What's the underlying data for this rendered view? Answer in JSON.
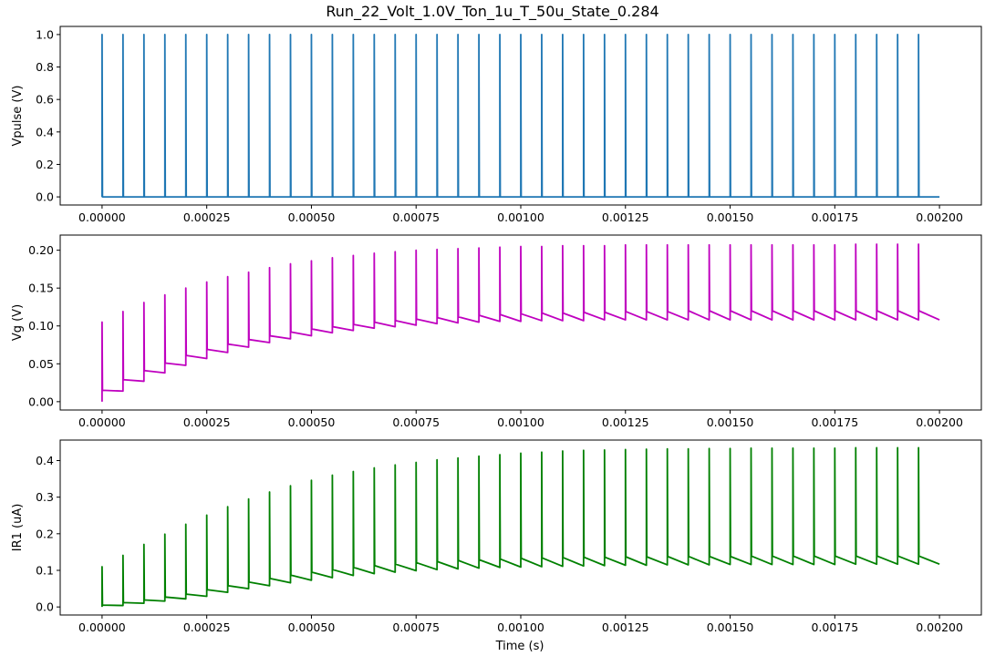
{
  "figure": {
    "title": "Run_22_Volt_1.0V_Ton_1u_T_50u_State_0.284",
    "xlabel": "Time (s)"
  },
  "chart_data": [
    {
      "type": "line",
      "ylabel": "Vpulse (V)",
      "color": "#1f77b4",
      "xlim": [
        -0.0001,
        0.0021
      ],
      "ylim": [
        -0.05,
        1.05
      ],
      "xticks": [
        "0.00000",
        "0.00025",
        "0.00050",
        "0.00075",
        "0.00100",
        "0.00125",
        "0.00150",
        "0.00175",
        "0.00200"
      ],
      "yticks": [
        "0.0",
        "0.2",
        "0.4",
        "0.6",
        "0.8",
        "1.0"
      ],
      "grid": false,
      "pulses": {
        "count": 40,
        "period": 5e-05,
        "t_on": 1e-06,
        "t_start": 0.0,
        "t_end": 0.002,
        "low": 0.0,
        "high": 1.0
      }
    },
    {
      "type": "line",
      "ylabel": "Vg (V)",
      "color": "#bf00bf",
      "xlim": [
        -0.0001,
        0.0021
      ],
      "ylim": [
        -0.011,
        0.22
      ],
      "xticks": [
        "0.00000",
        "0.00025",
        "0.00050",
        "0.00075",
        "0.00100",
        "0.00125",
        "0.00150",
        "0.00175",
        "0.00200"
      ],
      "yticks": [
        "0.00",
        "0.05",
        "0.10",
        "0.15",
        "0.20"
      ],
      "grid": false,
      "pulses": {
        "count": 40,
        "period": 5e-05,
        "t_on": 1e-06,
        "t_start": 0.0,
        "t_end": 0.002,
        "initial": 0.0
      },
      "peaks": [
        0.105,
        0.119,
        0.131,
        0.141,
        0.15,
        0.158,
        0.165,
        0.171,
        0.177,
        0.182,
        0.186,
        0.19,
        0.193,
        0.196,
        0.198,
        0.2,
        0.201,
        0.202,
        0.203,
        0.204,
        0.205,
        0.205,
        0.206,
        0.206,
        0.206,
        0.207,
        0.207,
        0.207,
        0.207,
        0.207,
        0.207,
        0.207,
        0.207,
        0.207,
        0.207,
        0.207,
        0.208,
        0.208,
        0.208,
        0.208
      ],
      "starts": [
        0.015,
        0.029,
        0.041,
        0.051,
        0.061,
        0.069,
        0.076,
        0.082,
        0.087,
        0.092,
        0.096,
        0.099,
        0.102,
        0.105,
        0.107,
        0.109,
        0.111,
        0.112,
        0.114,
        0.115,
        0.116,
        0.117,
        0.117,
        0.118,
        0.118,
        0.119,
        0.119,
        0.119,
        0.12,
        0.12,
        0.12,
        0.12,
        0.12,
        0.12,
        0.12,
        0.12,
        0.12,
        0.12,
        0.12,
        0.12
      ],
      "ends": [
        0.014,
        0.027,
        0.038,
        0.048,
        0.057,
        0.065,
        0.072,
        0.078,
        0.083,
        0.087,
        0.091,
        0.094,
        0.097,
        0.099,
        0.101,
        0.103,
        0.104,
        0.105,
        0.106,
        0.106,
        0.107,
        0.107,
        0.107,
        0.108,
        0.108,
        0.108,
        0.108,
        0.108,
        0.108,
        0.108,
        0.108,
        0.108,
        0.108,
        0.108,
        0.108,
        0.108,
        0.108,
        0.108,
        0.108,
        0.108
      ]
    },
    {
      "type": "line",
      "ylabel": "IR1 (uA)",
      "color": "#008000",
      "xlim": [
        -0.0001,
        0.0021
      ],
      "ylim": [
        -0.022,
        0.456
      ],
      "xticks": [
        "0.00000",
        "0.00025",
        "0.00050",
        "0.00075",
        "0.00100",
        "0.00125",
        "0.00150",
        "0.00175",
        "0.00200"
      ],
      "yticks": [
        "0.0",
        "0.1",
        "0.2",
        "0.3",
        "0.4"
      ],
      "grid": false,
      "pulses": {
        "count": 40,
        "period": 5e-05,
        "t_on": 1e-06,
        "t_start": 0.0,
        "t_end": 0.002,
        "initial": 0.0
      },
      "peaks": [
        0.11,
        0.141,
        0.171,
        0.199,
        0.226,
        0.251,
        0.274,
        0.295,
        0.314,
        0.331,
        0.346,
        0.36,
        0.37,
        0.38,
        0.388,
        0.395,
        0.402,
        0.407,
        0.412,
        0.416,
        0.42,
        0.423,
        0.426,
        0.428,
        0.429,
        0.43,
        0.431,
        0.432,
        0.432,
        0.433,
        0.433,
        0.434,
        0.434,
        0.434,
        0.434,
        0.434,
        0.435,
        0.435,
        0.435,
        0.435
      ],
      "starts": [
        0.005,
        0.012,
        0.019,
        0.027,
        0.035,
        0.047,
        0.058,
        0.068,
        0.078,
        0.087,
        0.095,
        0.102,
        0.108,
        0.113,
        0.117,
        0.121,
        0.124,
        0.127,
        0.129,
        0.131,
        0.133,
        0.134,
        0.135,
        0.136,
        0.136,
        0.137,
        0.137,
        0.138,
        0.138,
        0.138,
        0.138,
        0.139,
        0.139,
        0.139,
        0.139,
        0.139,
        0.139,
        0.139,
        0.139,
        0.139
      ],
      "ends": [
        0.004,
        0.01,
        0.016,
        0.022,
        0.029,
        0.04,
        0.05,
        0.058,
        0.066,
        0.073,
        0.08,
        0.086,
        0.091,
        0.095,
        0.099,
        0.102,
        0.104,
        0.106,
        0.108,
        0.109,
        0.11,
        0.111,
        0.112,
        0.113,
        0.114,
        0.114,
        0.115,
        0.115,
        0.115,
        0.116,
        0.116,
        0.116,
        0.116,
        0.116,
        0.116,
        0.117,
        0.117,
        0.117,
        0.117,
        0.117
      ]
    }
  ]
}
